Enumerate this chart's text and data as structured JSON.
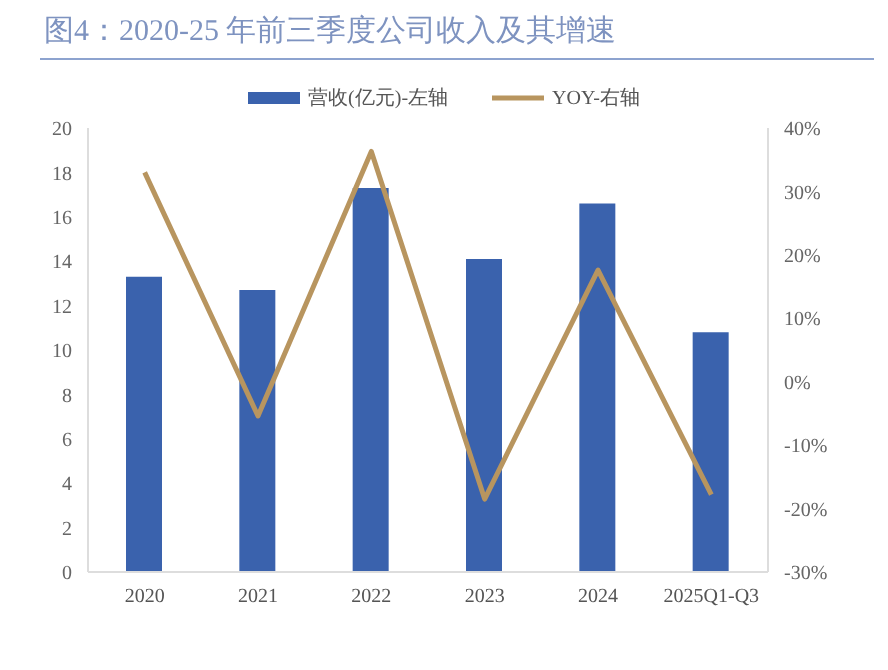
{
  "chart_data": {
    "type": "bar",
    "title": "图4：2020-25 年前三季度公司收入及其增速",
    "categories": [
      "2020",
      "2021",
      "2022",
      "2023",
      "2024",
      "2025Q1-Q3"
    ],
    "series": [
      {
        "name": "营收(亿元)-左轴",
        "color": "#3a62ad",
        "values": [
          13.3,
          12.7,
          17.3,
          14.1,
          16.6,
          10.8
        ]
      },
      {
        "name": "YOY-右轴",
        "type": "line",
        "axis": "y2",
        "color": "#b8955f",
        "values": [
          33,
          -5.4,
          36.3,
          -18.5,
          17.6,
          -17.8
        ]
      }
    ],
    "ylim": [
      0,
      20
    ],
    "yticks": [
      0,
      2,
      4,
      6,
      8,
      10,
      12,
      14,
      16,
      18,
      20
    ],
    "y2lim": [
      -30,
      40
    ],
    "y2ticks": [
      {
        "value": -30,
        "label": "-30%"
      },
      {
        "value": -20,
        "label": "-20%"
      },
      {
        "value": -10,
        "label": "-10%"
      },
      {
        "value": 0,
        "label": "0%"
      },
      {
        "value": 10,
        "label": "10%"
      },
      {
        "value": 20,
        "label": "20%"
      },
      {
        "value": 30,
        "label": "30%"
      },
      {
        "value": 40,
        "label": "40%"
      }
    ],
    "grid": false,
    "legend": "top",
    "marker": "none",
    "line_style": "solid"
  }
}
